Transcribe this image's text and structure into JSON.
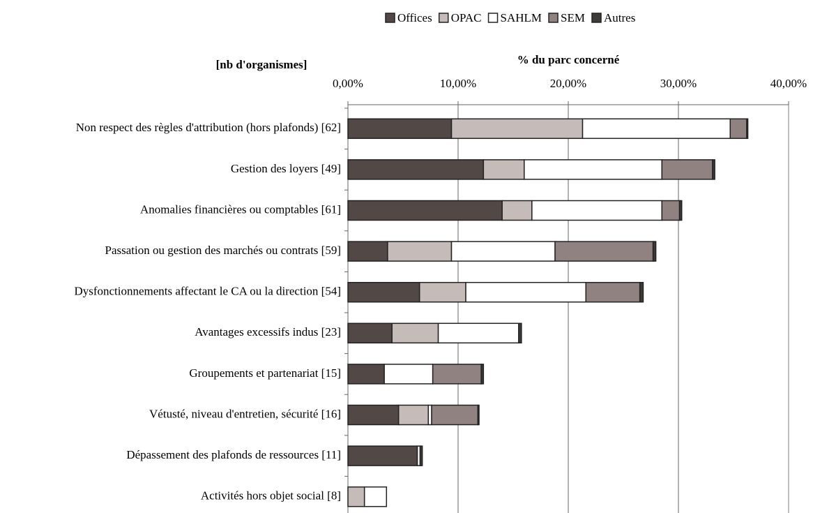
{
  "chart_data": {
    "type": "bar",
    "orientation": "horizontal",
    "stacked": true,
    "title": "% du parc concerné",
    "y_axis_title": "[nb d'organismes]",
    "categories": [
      "Non respect des règles d'attribution (hors plafonds) [62]",
      "Gestion des loyers [49]",
      "Anomalies financières ou comptables [61]",
      "Passation ou gestion des marchés ou contrats [59]",
      "Dysfonctionnements affectant le CA ou la direction [54]",
      "Avantages excessifs indus [23]",
      "Groupements et partenariat [15]",
      "Vétusté, niveau d'entretien, sécurité [16]",
      "Dépassement des plafonds de ressources [11]",
      "Activités hors objet social [8]"
    ],
    "series": [
      {
        "name": "Offices",
        "color": "#524846",
        "values": [
          9.4,
          12.3,
          14.0,
          3.6,
          6.5,
          4.0,
          3.3,
          4.6,
          6.3,
          0
        ]
      },
      {
        "name": "OPAC",
        "color": "#c5bbb8",
        "values": [
          11.9,
          3.7,
          2.7,
          5.8,
          4.2,
          4.2,
          0,
          2.7,
          0,
          1.5
        ]
      },
      {
        "name": "SAHLM",
        "color": "#ffffff",
        "values": [
          13.4,
          12.5,
          11.8,
          9.4,
          10.9,
          7.3,
          4.4,
          0.3,
          0.25,
          2.0
        ]
      },
      {
        "name": "SEM",
        "color": "#8f8280",
        "values": [
          1.5,
          4.6,
          1.6,
          8.9,
          4.9,
          0,
          4.4,
          4.2,
          0,
          0
        ]
      },
      {
        "name": "Autres",
        "color": "#3e3a39",
        "values": [
          0.1,
          0.2,
          0.2,
          0.25,
          0.3,
          0.25,
          0.2,
          0.1,
          0.2,
          0
        ]
      }
    ],
    "xlim": [
      0,
      40
    ],
    "xticks": [
      {
        "value": 0,
        "label": "0,00%"
      },
      {
        "value": 10,
        "label": "10,00%"
      },
      {
        "value": 20,
        "label": "20,00%"
      },
      {
        "value": 30,
        "label": "30,00%"
      },
      {
        "value": 40,
        "label": "40,00%"
      }
    ],
    "grid": true,
    "legend": "top"
  }
}
